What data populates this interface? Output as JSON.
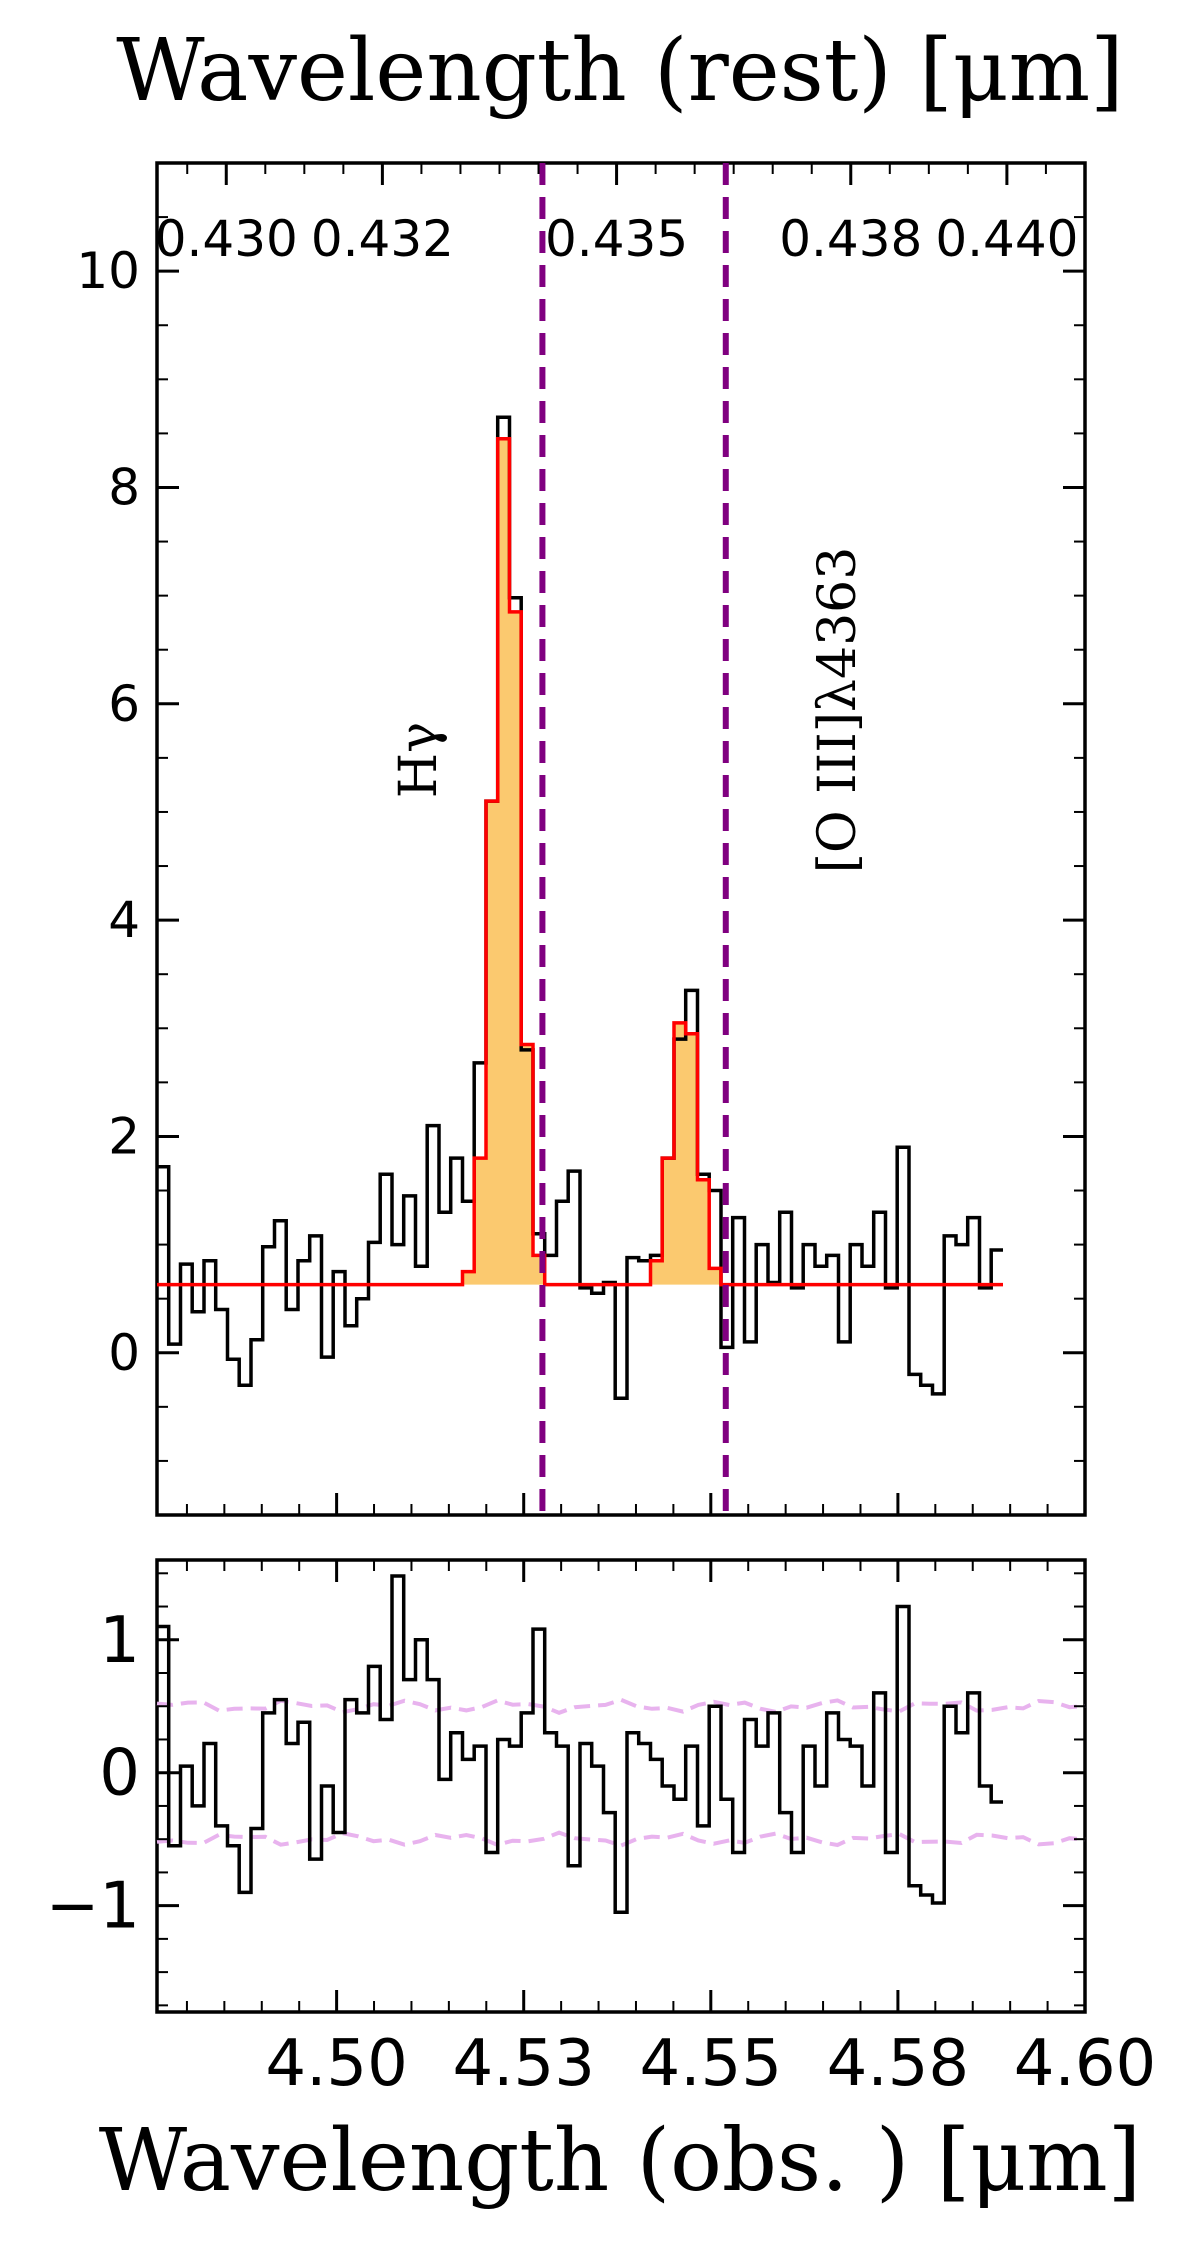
{
  "chart_data": [
    {
      "type": "line",
      "panel": "spectrum",
      "top_axis": {
        "label": "Wavelength (rest) [μm]",
        "ticks": [
          0.43,
          0.432,
          0.435,
          0.438,
          0.44
        ],
        "tick_labels": [
          "0.430",
          "0.432",
          "0.435",
          "0.438",
          "0.440"
        ]
      },
      "xlabel": "",
      "ylabel": "",
      "xlim": [
        4.476,
        4.6
      ],
      "ylim": [
        -1.5,
        11.0
      ],
      "yticks": [
        0,
        2,
        4,
        6,
        8,
        10
      ],
      "ytick_labels": [
        "0",
        "2",
        "4",
        "6",
        "8",
        "10"
      ],
      "lines": [
        {
          "label": "Hγ",
          "wavelength_obs": 4.5275
        },
        {
          "label": "[O III]λ4363",
          "wavelength_obs": 4.552
        }
      ],
      "series": [
        {
          "kind": "data-step",
          "color": "#000000",
          "x_start": 4.476,
          "x_step": 0.00157,
          "values": [
            1.72,
            0.08,
            0.82,
            0.38,
            0.85,
            0.4,
            -0.06,
            -0.3,
            0.12,
            0.98,
            1.22,
            0.4,
            0.85,
            1.08,
            -0.04,
            0.75,
            0.25,
            0.5,
            1.02,
            1.65,
            1.0,
            1.45,
            0.8,
            2.1,
            1.3,
            1.8,
            1.4,
            2.68,
            5.1,
            8.65,
            6.98,
            2.8,
            1.1,
            0.9,
            1.4,
            1.68,
            0.6,
            0.55,
            0.65,
            -0.42,
            0.88,
            0.85,
            0.9,
            1.8,
            2.9,
            3.35,
            1.65,
            1.5,
            0.05,
            1.25,
            0.1,
            1.0,
            0.65,
            1.3,
            0.6,
            1.0,
            0.8,
            0.9,
            0.1,
            1.0,
            0.8,
            1.3,
            0.6,
            1.9,
            -0.2,
            -0.3,
            -0.38,
            1.08,
            1.0,
            1.25,
            0.6,
            0.95
          ]
        },
        {
          "kind": "model-step",
          "color": "#ff0000",
          "fill": "#fbc96f",
          "continuum": 0.63,
          "values": [
            0.63,
            0.63,
            0.63,
            0.63,
            0.63,
            0.63,
            0.63,
            0.63,
            0.63,
            0.63,
            0.63,
            0.63,
            0.63,
            0.63,
            0.63,
            0.63,
            0.63,
            0.63,
            0.63,
            0.63,
            0.63,
            0.63,
            0.63,
            0.63,
            0.63,
            0.63,
            0.75,
            1.8,
            5.1,
            8.45,
            6.85,
            2.85,
            0.9,
            0.63,
            0.63,
            0.63,
            0.63,
            0.63,
            0.63,
            0.63,
            0.63,
            0.63,
            0.85,
            1.8,
            3.05,
            2.95,
            1.6,
            0.78,
            0.63,
            0.63,
            0.63,
            0.63,
            0.63,
            0.63,
            0.63,
            0.63,
            0.63,
            0.63,
            0.63,
            0.63,
            0.63,
            0.63,
            0.63,
            0.63,
            0.63,
            0.63,
            0.63,
            0.63,
            0.63,
            0.63,
            0.63,
            0.63
          ]
        }
      ]
    },
    {
      "type": "line",
      "panel": "residual",
      "xlabel": "Wavelength (obs. ) [μm]",
      "ylabel": "",
      "xlim": [
        4.476,
        4.6
      ],
      "ylim": [
        -1.8,
        1.6
      ],
      "xticks": [
        4.5,
        4.525,
        4.55,
        4.575,
        4.6
      ],
      "xtick_labels": [
        "4.50",
        "4.53",
        "4.55",
        "4.58",
        "4.60"
      ],
      "yticks": [
        1,
        0,
        -1
      ],
      "ytick_labels": [
        "1",
        "0",
        "−1"
      ],
      "series": [
        {
          "kind": "residual-step",
          "color": "#000000",
          "x_start": 4.476,
          "x_step": 0.00157,
          "values": [
            1.1,
            -0.55,
            0.05,
            -0.25,
            0.22,
            -0.4,
            -0.55,
            -0.9,
            -0.42,
            0.45,
            0.55,
            0.22,
            0.38,
            -0.65,
            -0.1,
            -0.45,
            0.55,
            0.45,
            0.8,
            0.4,
            1.48,
            0.7,
            1.0,
            0.7,
            -0.05,
            0.3,
            0.1,
            0.2,
            -0.6,
            0.25,
            0.2,
            0.45,
            1.08,
            0.3,
            0.2,
            -0.7,
            0.22,
            0.05,
            -0.3,
            -1.05,
            0.3,
            0.22,
            0.1,
            -0.1,
            -0.2,
            0.2,
            -0.4,
            0.5,
            -0.2,
            -0.6,
            0.4,
            0.2,
            0.45,
            -0.3,
            -0.6,
            0.2,
            -0.1,
            0.45,
            0.25,
            0.2,
            -0.1,
            0.6,
            -0.6,
            1.25,
            -0.85,
            -0.92,
            -0.98,
            0.5,
            0.3,
            0.6,
            -0.1,
            -0.22
          ]
        },
        {
          "kind": "error-band",
          "color": "#e8b3ee",
          "upper": 0.5,
          "lower": -0.5
        }
      ]
    }
  ],
  "colors": {
    "data": "#000000",
    "model": "#ff0000",
    "model_fill": "#fbc96f",
    "line_marker": "#800080",
    "error_band": "#e8b3ee"
  }
}
